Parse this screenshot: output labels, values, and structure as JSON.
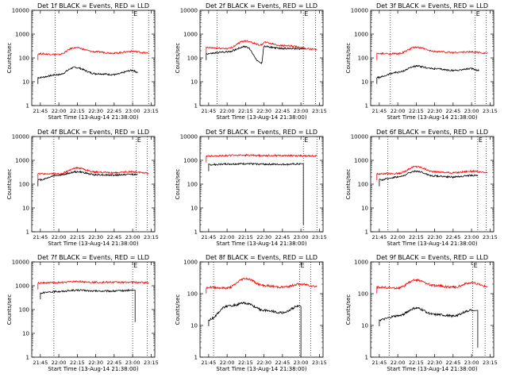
{
  "chart_data": [
    {
      "type": "line",
      "title": "Det 1f BLACK = Events, RED = LLD",
      "xlabel": "Start Time (13-Aug-14 21:38:00)",
      "ylabel": "Counts/sec",
      "yscale": "log",
      "ylim": [
        1,
        10000
      ],
      "xticks": [
        "21:45",
        "22:00",
        "22:15",
        "22:30",
        "22:45",
        "23:00",
        "23:15"
      ],
      "yticks": [
        "1",
        "10",
        "100",
        "1000",
        "10000"
      ],
      "markers": [
        "21:57",
        "23:00",
        "23:13"
      ],
      "marker_labels": [
        "",
        "E",
        ""
      ],
      "series": [
        {
          "name": "Events",
          "color": "#000000",
          "x": [
            "21:43",
            "22:00",
            "22:13",
            "22:30",
            "22:45",
            "23:00",
            "23:04"
          ],
          "values": [
            15,
            20,
            40,
            22,
            20,
            30,
            25
          ]
        },
        {
          "name": "LLD",
          "color": "#ff0000",
          "x": [
            "21:43",
            "22:00",
            "22:13",
            "22:30",
            "22:45",
            "23:00",
            "23:13"
          ],
          "values": [
            150,
            140,
            270,
            180,
            160,
            190,
            160
          ]
        }
      ]
    },
    {
      "type": "line",
      "title": "Det 2f BLACK = Events, RED = LLD",
      "xlabel": "Start Time (13-Aug-14 21:38:00)",
      "ylabel": "Counts/sec",
      "yscale": "log",
      "ylim": [
        1,
        10000
      ],
      "xticks": [
        "21:45",
        "22:00",
        "22:15",
        "22:30",
        "22:45",
        "23:00",
        "23:15"
      ],
      "yticks": [
        "1",
        "10",
        "100",
        "1000",
        "10000"
      ],
      "markers": [
        "21:52",
        "23:02",
        "23:12"
      ],
      "marker_labels": [
        "",
        "E",
        ""
      ],
      "series": [
        {
          "name": "Events",
          "color": "#000000",
          "x": [
            "21:43",
            "22:00",
            "22:15",
            "22:28",
            "22:30",
            "22:45",
            "23:04"
          ],
          "values": [
            150,
            180,
            300,
            60,
            300,
            250,
            240
          ]
        },
        {
          "name": "LLD",
          "color": "#ff0000",
          "x": [
            "21:43",
            "22:00",
            "22:15",
            "22:28",
            "22:30",
            "22:45",
            "23:13"
          ],
          "values": [
            270,
            250,
            520,
            350,
            450,
            330,
            230
          ]
        }
      ]
    },
    {
      "type": "line",
      "title": "Det 3f BLACK = Events, RED = LLD",
      "xlabel": "Start Time (13-Aug-14 21:38:00)",
      "ylabel": "Counts/sec",
      "yscale": "log",
      "ylim": [
        1,
        10000
      ],
      "xticks": [
        "21:45",
        "22:00",
        "22:15",
        "22:30",
        "22:45",
        "23:00",
        "23:15"
      ],
      "yticks": [
        "1",
        "10",
        "100",
        "1000",
        "10000"
      ],
      "markers": [
        "21:54",
        "23:03",
        "23:12"
      ],
      "marker_labels": [
        "",
        "E",
        ""
      ],
      "series": [
        {
          "name": "Events",
          "color": "#000000",
          "x": [
            "21:43",
            "22:00",
            "22:15",
            "22:30",
            "22:45",
            "23:00",
            "23:06"
          ],
          "values": [
            15,
            25,
            45,
            35,
            30,
            35,
            30
          ]
        },
        {
          "name": "LLD",
          "color": "#ff0000",
          "x": [
            "21:43",
            "22:00",
            "22:15",
            "22:30",
            "22:45",
            "23:00",
            "23:13"
          ],
          "values": [
            150,
            150,
            280,
            190,
            170,
            180,
            160
          ]
        }
      ]
    },
    {
      "type": "line",
      "title": "Det 4f BLACK = Events, RED = LLD",
      "xlabel": "Start Time (13-Aug-14 21:38:00)",
      "ylabel": "Counts/sec",
      "yscale": "log",
      "ylim": [
        1,
        10000
      ],
      "xticks": [
        "21:45",
        "22:00",
        "22:15",
        "22:30",
        "22:45",
        "23:00",
        "23:15"
      ],
      "yticks": [
        "1",
        "10",
        "100",
        "1000",
        "10000"
      ],
      "markers": [
        "21:56",
        "23:03",
        "23:12"
      ],
      "marker_labels": [
        "",
        "E",
        ""
      ],
      "series": [
        {
          "name": "Events",
          "color": "#000000",
          "x": [
            "21:43",
            "22:00",
            "22:15",
            "22:30",
            "22:45",
            "23:00",
            "23:04"
          ],
          "values": [
            150,
            240,
            330,
            250,
            240,
            260,
            250
          ]
        },
        {
          "name": "LLD",
          "color": "#ff0000",
          "x": [
            "21:43",
            "22:00",
            "22:15",
            "22:30",
            "22:45",
            "23:00",
            "23:13"
          ],
          "values": [
            270,
            270,
            480,
            320,
            300,
            330,
            290
          ]
        }
      ]
    },
    {
      "type": "line",
      "title": "Det 5f BLACK = Events, RED = LLD",
      "xlabel": "Start Time (13-Aug-14 21:38:00)",
      "ylabel": "Counts/sec",
      "yscale": "log",
      "ylim": [
        1,
        10000
      ],
      "xticks": [
        "21:45",
        "22:00",
        "22:15",
        "22:30",
        "22:45",
        "23:00",
        "23:15"
      ],
      "yticks": [
        "1",
        "10",
        "100",
        "1000",
        "10000"
      ],
      "markers": [
        "23:02",
        "23:13"
      ],
      "marker_labels": [
        "E",
        ""
      ],
      "series": [
        {
          "name": "Events",
          "color": "#000000",
          "x": [
            "21:45",
            "22:00",
            "22:15",
            "22:30",
            "22:45",
            "23:00",
            "23:02"
          ],
          "values": [
            650,
            700,
            720,
            690,
            680,
            700,
            2
          ]
        },
        {
          "name": "LLD",
          "color": "#ff0000",
          "x": [
            "21:43",
            "22:00",
            "22:15",
            "22:30",
            "22:45",
            "23:00",
            "23:13"
          ],
          "values": [
            1500,
            1600,
            1650,
            1600,
            1600,
            1550,
            1550
          ]
        }
      ]
    },
    {
      "type": "line",
      "title": "Det 6f BLACK = Events, RED = LLD",
      "xlabel": "Start Time (13-Aug-14 21:38:00)",
      "ylabel": "Counts/sec",
      "yscale": "log",
      "ylim": [
        1,
        10000
      ],
      "xticks": [
        "21:45",
        "22:00",
        "22:15",
        "22:30",
        "22:45",
        "23:00",
        "23:15"
      ],
      "yticks": [
        "1",
        "10",
        "100",
        "1000",
        "10000"
      ],
      "markers": [
        "21:52",
        "23:05",
        "23:12"
      ],
      "marker_labels": [
        "",
        "E",
        ""
      ],
      "series": [
        {
          "name": "Events",
          "color": "#000000",
          "x": [
            "21:45",
            "22:00",
            "22:15",
            "22:30",
            "22:45",
            "23:00",
            "23:05"
          ],
          "values": [
            150,
            200,
            350,
            220,
            200,
            230,
            230
          ]
        },
        {
          "name": "LLD",
          "color": "#ff0000",
          "x": [
            "21:43",
            "22:00",
            "22:15",
            "22:30",
            "22:45",
            "23:00",
            "23:13"
          ],
          "values": [
            270,
            280,
            550,
            330,
            300,
            350,
            300
          ]
        }
      ]
    },
    {
      "type": "line",
      "title": "Det 7f BLACK = Events, RED = LLD",
      "xlabel": "Start Time (13-Aug-14 21:38:00)",
      "ylabel": "Counts/sec",
      "yscale": "log",
      "ylim": [
        1,
        10000
      ],
      "xticks": [
        "21:45",
        "22:00",
        "22:15",
        "22:30",
        "22:45",
        "23:00",
        "23:15"
      ],
      "yticks": [
        "1",
        "10",
        "100",
        "1000",
        "10000"
      ],
      "markers": [
        "21:56",
        "23:00",
        "23:12"
      ],
      "marker_labels": [
        "",
        "E",
        ""
      ],
      "series": [
        {
          "name": "Events",
          "color": "#000000",
          "x": [
            "21:45",
            "22:00",
            "22:15",
            "22:30",
            "22:45",
            "23:00",
            "23:02"
          ],
          "values": [
            500,
            580,
            650,
            600,
            600,
            650,
            30
          ]
        },
        {
          "name": "LLD",
          "color": "#ff0000",
          "x": [
            "21:43",
            "22:00",
            "22:15",
            "22:30",
            "22:45",
            "23:00",
            "23:13"
          ],
          "values": [
            1300,
            1350,
            1500,
            1400,
            1400,
            1400,
            1350
          ]
        }
      ]
    },
    {
      "type": "line",
      "title": "Det 8f BLACK = Events, RED = LLD",
      "xlabel": "Start Time (13-Aug-14 21:38:00)",
      "ylabel": "Counts/sec",
      "yscale": "log",
      "ylim": [
        1,
        1000
      ],
      "xticks": [
        "21:45",
        "22:00",
        "22:15",
        "22:30",
        "22:45",
        "23:00",
        "23:15"
      ],
      "yticks": [
        "1",
        "10",
        "100",
        "1000"
      ],
      "markers": [
        "21:49",
        "22:59",
        "23:08"
      ],
      "marker_labels": [
        "",
        "E",
        ""
      ],
      "series": [
        {
          "name": "Events",
          "color": "#000000",
          "x": [
            "21:45",
            "22:00",
            "22:15",
            "22:30",
            "22:45",
            "22:58",
            "23:00"
          ],
          "values": [
            15,
            40,
            50,
            30,
            25,
            40,
            1
          ]
        },
        {
          "name": "LLD",
          "color": "#ff0000",
          "x": [
            "21:43",
            "22:00",
            "22:15",
            "22:30",
            "22:45",
            "23:00",
            "23:13"
          ],
          "values": [
            160,
            150,
            300,
            180,
            160,
            200,
            170
          ]
        }
      ]
    },
    {
      "type": "line",
      "title": "Det 9f BLACK = Events, RED = LLD",
      "xlabel": "Start Time (13-Aug-14 21:38:00)",
      "ylabel": "Counts/sec",
      "yscale": "log",
      "ylim": [
        1,
        1000
      ],
      "xticks": [
        "21:45",
        "22:00",
        "22:15",
        "22:30",
        "22:45",
        "23:00",
        "23:15"
      ],
      "yticks": [
        "1",
        "10",
        "100",
        "1000"
      ],
      "markers": [
        "21:53",
        "23:01",
        "23:11"
      ],
      "marker_labels": [
        "",
        "E",
        ""
      ],
      "series": [
        {
          "name": "Events",
          "color": "#000000",
          "x": [
            "21:45",
            "22:00",
            "22:15",
            "22:30",
            "22:45",
            "23:00",
            "23:05"
          ],
          "values": [
            15,
            20,
            35,
            22,
            20,
            30,
            2
          ]
        },
        {
          "name": "LLD",
          "color": "#ff0000",
          "x": [
            "21:43",
            "22:00",
            "22:15",
            "22:30",
            "22:45",
            "23:00",
            "23:13"
          ],
          "values": [
            160,
            150,
            270,
            180,
            160,
            220,
            170
          ]
        }
      ]
    }
  ]
}
